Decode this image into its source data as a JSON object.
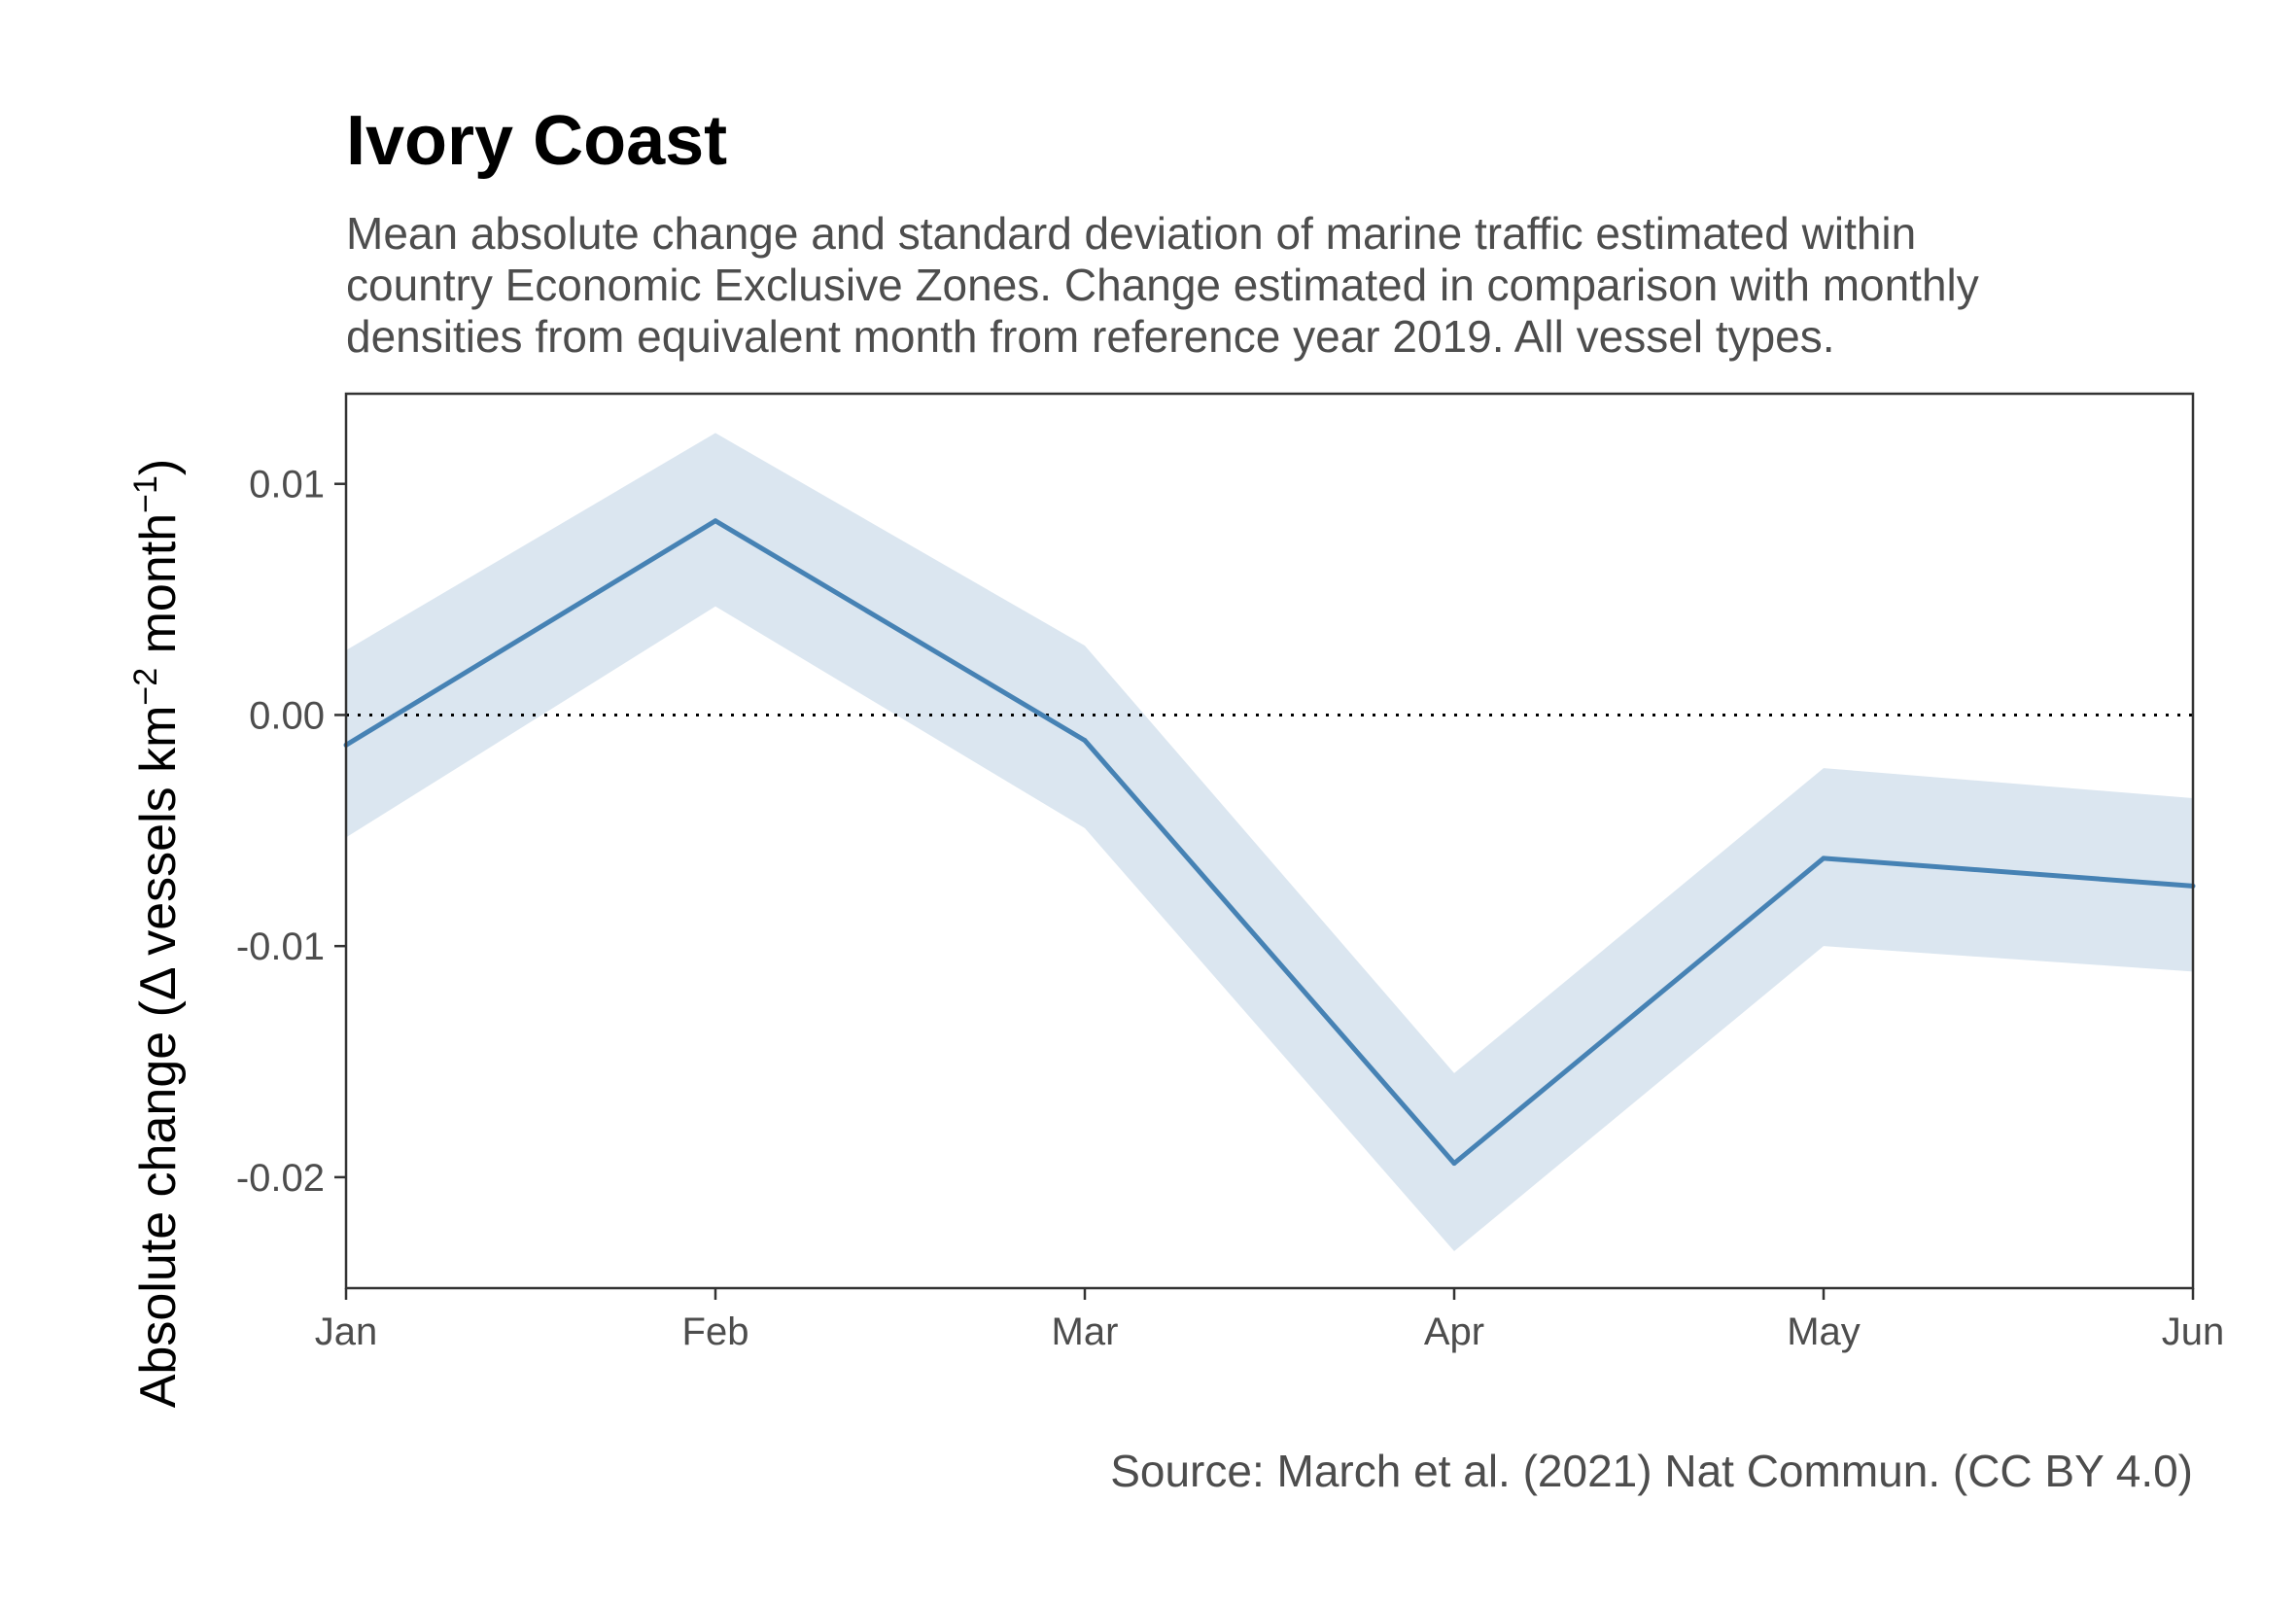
{
  "chart_data": {
    "type": "line",
    "title": "Ivory Coast",
    "subtitle_lines": [
      "Mean absolute change and standard deviation of marine traffic estimated within",
      "country Economic Exclusive Zones. Change estimated in comparison with monthly",
      "densities from equivalent month from reference year 2019. All vessel types."
    ],
    "caption": "Source: March et al. (2021) Nat Commun. (CC BY 4.0)",
    "ylabel": {
      "prefix": "Absolute change (",
      "delta": "Δ",
      "main": " vessels km",
      "exp1": "−2",
      "middle": " month",
      "exp2": "−1",
      "suffix": ")"
    },
    "xlabel": "",
    "categories": [
      "Jan",
      "Feb",
      "Mar",
      "Apr",
      "May",
      "Jun"
    ],
    "series": [
      {
        "mean": [
          -0.0013,
          0.0084,
          -0.0011,
          -0.0194,
          -0.0062,
          -0.0074
        ],
        "lower": [
          -0.0053,
          0.0047,
          -0.0049,
          -0.0232,
          -0.01,
          -0.0111
        ],
        "upper": [
          0.0028,
          0.0122,
          0.003,
          -0.0155,
          -0.0023,
          -0.0036
        ]
      }
    ],
    "ylim": [
      -0.0248,
      0.0139
    ],
    "yticks": [
      0.01,
      0.0,
      -0.01,
      -0.02
    ],
    "ytick_labels": [
      "0.01",
      "0.00",
      "-0.01",
      "-0.02"
    ],
    "reference_line": 0,
    "grid": false,
    "colors": {
      "line": "#4682b4",
      "ribbon": "#dbe6f0",
      "reference": "#000000",
      "axis": "#333333"
    }
  }
}
